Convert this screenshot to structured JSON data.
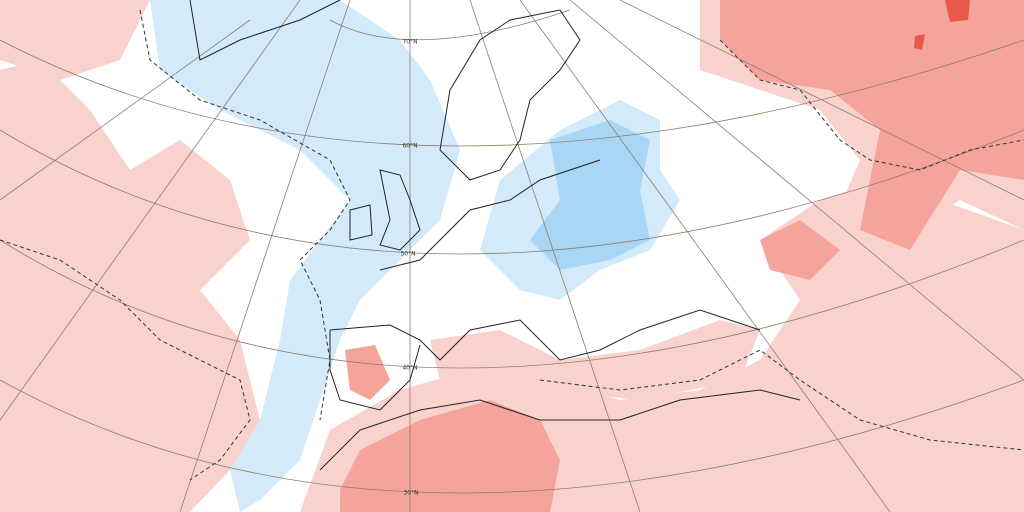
{
  "map": {
    "latitude_labels": [
      "70°N",
      "60°N",
      "50°N",
      "40°N",
      "30°N"
    ]
  }
}
